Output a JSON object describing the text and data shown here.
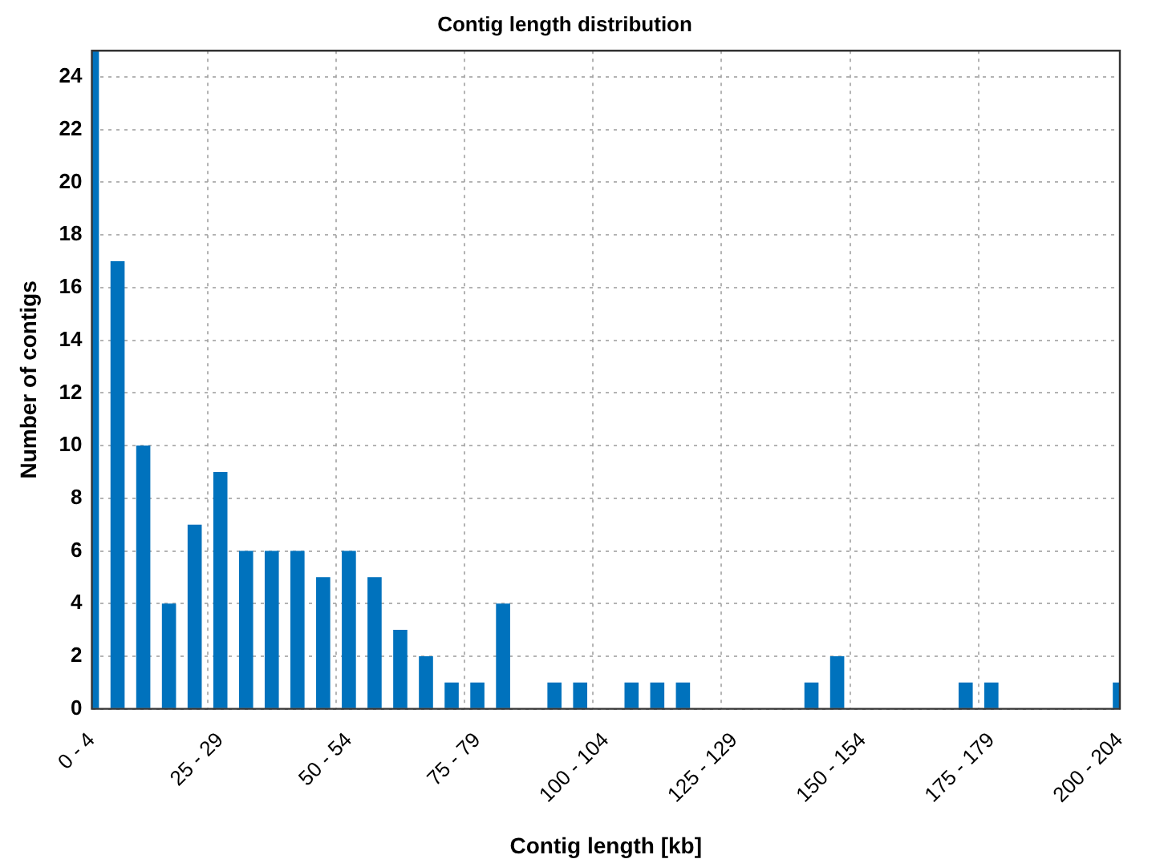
{
  "chart_data": {
    "type": "bar",
    "title": "Contig length distribution",
    "xlabel": "Contig length [kb]",
    "ylabel": "Number of contigs",
    "categories": [
      "0 - 4",
      null,
      null,
      null,
      null,
      "25 - 29",
      null,
      null,
      null,
      null,
      "50 - 54",
      null,
      null,
      null,
      null,
      "75 - 79",
      null,
      null,
      null,
      null,
      "100 - 104",
      null,
      null,
      null,
      null,
      "125 - 129",
      null,
      null,
      null,
      null,
      "150 - 154",
      null,
      null,
      null,
      null,
      "175 - 179",
      null,
      null,
      null,
      null,
      "200 - 204"
    ],
    "values": [
      25,
      17,
      10,
      4,
      7,
      9,
      6,
      6,
      6,
      5,
      6,
      5,
      3,
      2,
      1,
      1,
      4,
      0,
      1,
      1,
      0,
      1,
      1,
      1,
      0,
      0,
      0,
      0,
      1,
      2,
      0,
      0,
      0,
      0,
      1,
      1,
      0,
      0,
      0,
      0,
      1
    ],
    "color": "#0072bd",
    "ylim": [
      0,
      25
    ],
    "yticks": [
      0,
      2,
      4,
      6,
      8,
      10,
      12,
      14,
      16,
      18,
      20,
      22,
      24
    ],
    "grid": true
  }
}
